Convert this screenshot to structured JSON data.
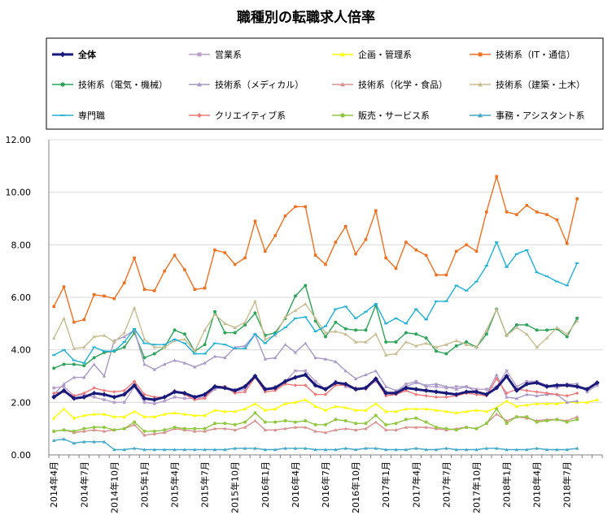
{
  "chart_data": {
    "type": "line",
    "title": "職種別の転職求人倍率",
    "xlabel": "",
    "ylabel": "",
    "ylim": [
      0,
      12
    ],
    "yticks": [
      "0.00",
      "2.00",
      "4.00",
      "6.00",
      "8.00",
      "10.00",
      "12.00"
    ],
    "x_tick_labels": [
      "2014年4月",
      "2014年7月",
      "2014年10月",
      "2015年1月",
      "2015年4月",
      "2015年7月",
      "2015年10月",
      "2016年1月",
      "2016年4月",
      "2016年7月",
      "2016年10月",
      "2017年1月",
      "2017年4月",
      "2017年7月",
      "2017年10月",
      "2018年1月",
      "2018年4月",
      "2018年7月"
    ],
    "grid": true,
    "legend_position": "top",
    "series": [
      {
        "name": "全体",
        "color": "#1a1a7a",
        "marker": "diamond",
        "bold": true,
        "values": [
          2.2,
          2.45,
          2.15,
          2.2,
          2.35,
          2.3,
          2.2,
          2.3,
          2.65,
          2.15,
          2.1,
          2.2,
          2.4,
          2.35,
          2.2,
          2.3,
          2.6,
          2.55,
          2.45,
          2.6,
          3.0,
          2.5,
          2.55,
          2.8,
          2.95,
          3.05,
          2.65,
          2.5,
          2.75,
          2.7,
          2.5,
          2.55,
          2.9,
          2.35,
          2.35,
          2.55,
          2.5,
          2.45,
          2.4,
          2.35,
          2.3,
          2.4,
          2.4,
          2.3,
          2.55,
          3.0,
          2.45,
          2.7,
          2.75,
          2.6,
          2.65,
          2.65,
          2.6,
          2.5,
          2.75
        ]
      },
      {
        "name": "営業系",
        "color": "#b8a0cc",
        "marker": "square",
        "values": [
          2.55,
          2.6,
          2.25,
          2.3,
          2.2,
          2.1,
          2.0,
          2.0,
          2.6,
          2.0,
          1.95,
          2.05,
          2.2,
          2.15,
          2.15,
          2.2,
          2.5,
          2.6,
          2.4,
          2.5,
          3.0,
          2.5,
          2.6,
          2.8,
          3.2,
          3.2,
          2.8,
          2.5,
          2.8,
          2.6,
          2.5,
          2.55,
          2.8,
          2.4,
          2.4,
          2.7,
          2.8,
          2.6,
          2.6,
          2.55,
          2.6,
          2.6,
          2.5,
          2.5,
          2.6,
          3.2,
          2.6,
          2.8,
          2.8,
          2.65,
          2.55,
          2.7,
          2.7,
          2.4,
          2.65
        ]
      },
      {
        "name": "企画・管理系",
        "color": "#ffff00",
        "marker": "triangle",
        "values": [
          1.4,
          1.75,
          1.4,
          1.5,
          1.55,
          1.55,
          1.45,
          1.45,
          1.65,
          1.45,
          1.45,
          1.55,
          1.6,
          1.55,
          1.5,
          1.5,
          1.7,
          1.65,
          1.65,
          1.75,
          1.95,
          1.7,
          1.75,
          1.95,
          2.0,
          2.1,
          1.85,
          1.7,
          1.85,
          1.8,
          1.7,
          1.7,
          1.95,
          1.65,
          1.65,
          1.75,
          1.75,
          1.75,
          1.7,
          1.65,
          1.6,
          1.65,
          1.7,
          1.65,
          1.8,
          2.05,
          1.85,
          1.9,
          1.95,
          1.95,
          1.95,
          2.0,
          2.0,
          2.0,
          2.1
        ]
      },
      {
        "name": "技術系（IT・通信）",
        "color": "#f07020",
        "marker": "square",
        "values": [
          5.65,
          6.4,
          5.05,
          5.15,
          6.1,
          6.05,
          5.95,
          6.55,
          7.5,
          6.3,
          6.25,
          7.0,
          7.6,
          7.05,
          6.3,
          6.35,
          7.8,
          7.7,
          7.25,
          7.5,
          8.9,
          7.75,
          8.35,
          9.1,
          9.45,
          9.45,
          7.6,
          7.25,
          8.1,
          8.7,
          7.65,
          8.2,
          9.3,
          7.5,
          7.1,
          8.1,
          7.8,
          7.6,
          6.85,
          6.85,
          7.75,
          8.0,
          7.75,
          9.25,
          10.6,
          9.25,
          9.15,
          9.5,
          9.25,
          9.15,
          8.95,
          8.05,
          9.75
        ]
      },
      {
        "name": "技術系（電気・機械）",
        "color": "#2ea35a",
        "marker": "circle",
        "values": [
          3.3,
          3.45,
          3.45,
          3.4,
          3.7,
          3.9,
          3.95,
          4.1,
          4.65,
          3.7,
          3.85,
          4.1,
          4.75,
          4.6,
          3.95,
          4.2,
          5.45,
          4.65,
          4.65,
          4.95,
          5.4,
          4.55,
          4.65,
          5.2,
          6.05,
          6.45,
          5.1,
          4.5,
          5.05,
          4.8,
          4.75,
          4.75,
          5.7,
          4.3,
          4.3,
          4.65,
          4.6,
          4.45,
          3.95,
          3.85,
          4.15,
          4.3,
          4.1,
          4.6,
          5.55,
          4.55,
          4.95,
          4.95,
          4.75,
          4.75,
          4.8,
          4.5,
          5.2
        ]
      },
      {
        "name": "技術系（メディカル）",
        "color": "#a898c8",
        "marker": "triangle",
        "values": [
          2.3,
          2.7,
          2.95,
          2.95,
          3.45,
          3.0,
          4.35,
          4.5,
          4.75,
          3.45,
          3.25,
          3.45,
          3.6,
          3.5,
          3.35,
          3.5,
          3.75,
          3.7,
          4.1,
          4.15,
          4.6,
          3.65,
          3.7,
          4.2,
          3.9,
          4.25,
          3.7,
          3.65,
          3.55,
          3.2,
          2.9,
          3.05,
          3.2,
          2.6,
          2.45,
          2.6,
          2.75,
          2.65,
          2.7,
          2.6,
          2.5,
          2.6,
          2.4,
          2.3,
          3.05,
          2.2,
          2.15,
          2.3,
          2.25,
          2.3,
          2.3,
          2.0,
          2.05
        ]
      },
      {
        "name": "技術系（化学・食品）",
        "color": "#d89090",
        "marker": "triangle",
        "values": [
          0.9,
          0.95,
          0.85,
          0.9,
          0.95,
          0.9,
          0.95,
          1.0,
          1.15,
          0.75,
          0.8,
          0.85,
          1.0,
          0.95,
          0.9,
          0.9,
          1.0,
          1.0,
          0.95,
          1.05,
          1.3,
          0.95,
          0.95,
          1.0,
          1.05,
          1.05,
          0.9,
          0.85,
          0.95,
          1.0,
          0.95,
          1.0,
          1.25,
          0.95,
          0.95,
          1.05,
          1.05,
          1.05,
          1.0,
          0.95,
          1.0,
          1.05,
          1.0,
          1.2,
          1.55,
          1.3,
          1.45,
          1.4,
          1.3,
          1.35,
          1.35,
          1.3,
          1.45
        ]
      },
      {
        "name": "技術系（建築・土木）",
        "color": "#c8bc90",
        "marker": "triangle",
        "values": [
          4.45,
          5.2,
          4.05,
          4.1,
          4.5,
          4.55,
          4.3,
          4.65,
          5.6,
          4.4,
          4.1,
          4.1,
          4.35,
          4.4,
          3.95,
          4.75,
          5.35,
          5.0,
          4.85,
          5.05,
          5.85,
          4.4,
          4.55,
          5.25,
          5.5,
          5.75,
          5.2,
          4.65,
          4.7,
          4.6,
          4.3,
          4.3,
          4.6,
          3.8,
          3.85,
          4.3,
          4.15,
          4.25,
          4.1,
          4.2,
          4.35,
          4.2,
          4.1,
          4.75,
          5.55,
          4.55,
          4.85,
          4.6,
          4.1,
          4.45,
          4.85,
          4.6,
          5.1
        ]
      },
      {
        "name": "専門職",
        "color": "#20b0d8",
        "marker": "dash",
        "values": [
          3.8,
          4.0,
          3.6,
          3.5,
          4.1,
          3.95,
          3.95,
          4.3,
          4.8,
          4.25,
          4.2,
          4.2,
          4.4,
          4.25,
          3.85,
          3.85,
          4.25,
          4.2,
          4.05,
          4.05,
          4.6,
          4.25,
          4.6,
          4.85,
          5.2,
          5.25,
          4.7,
          4.9,
          5.55,
          5.65,
          5.2,
          5.45,
          5.75,
          5.0,
          5.2,
          5.0,
          5.55,
          5.15,
          5.85,
          5.85,
          6.45,
          6.25,
          6.6,
          7.2,
          8.1,
          7.15,
          7.65,
          7.8,
          6.95,
          6.8,
          6.6,
          6.45,
          7.3
        ]
      },
      {
        "name": "クリエイティブ系",
        "color": "#f07878",
        "marker": "diamond",
        "values": [
          2.35,
          2.4,
          2.25,
          2.35,
          2.55,
          2.45,
          2.4,
          2.45,
          2.8,
          2.3,
          2.2,
          2.2,
          2.45,
          2.3,
          2.1,
          2.15,
          2.6,
          2.6,
          2.35,
          2.4,
          2.95,
          2.4,
          2.45,
          2.7,
          2.65,
          2.65,
          2.3,
          2.3,
          2.65,
          2.65,
          2.55,
          2.5,
          2.85,
          2.25,
          2.3,
          2.45,
          2.3,
          2.25,
          2.2,
          2.2,
          2.25,
          2.35,
          2.3,
          2.25,
          2.9,
          2.35,
          2.5,
          2.45,
          2.4,
          2.35,
          2.3,
          2.25,
          2.35
        ]
      },
      {
        "name": "販売・サービス系",
        "color": "#90c840",
        "marker": "circle",
        "values": [
          0.9,
          0.95,
          0.9,
          1.0,
          1.05,
          1.05,
          0.95,
          1.0,
          1.25,
          0.9,
          0.9,
          0.95,
          1.05,
          1.0,
          1.0,
          1.0,
          1.2,
          1.2,
          1.15,
          1.25,
          1.6,
          1.25,
          1.25,
          1.3,
          1.25,
          1.3,
          1.15,
          1.15,
          1.35,
          1.3,
          1.2,
          1.2,
          1.5,
          1.15,
          1.2,
          1.35,
          1.4,
          1.25,
          1.05,
          1.0,
          0.95,
          1.05,
          1.0,
          1.2,
          1.75,
          1.2,
          1.45,
          1.45,
          1.25,
          1.3,
          1.35,
          1.25,
          1.35
        ]
      },
      {
        "name": "事務・アシスタント系",
        "color": "#40a8c8",
        "marker": "triangle",
        "values": [
          0.55,
          0.6,
          0.45,
          0.5,
          0.5,
          0.5,
          0.2,
          0.2,
          0.25,
          0.2,
          0.2,
          0.2,
          0.2,
          0.2,
          0.2,
          0.2,
          0.2,
          0.2,
          0.25,
          0.25,
          0.25,
          0.2,
          0.2,
          0.25,
          0.25,
          0.25,
          0.2,
          0.2,
          0.2,
          0.25,
          0.2,
          0.25,
          0.25,
          0.2,
          0.2,
          0.2,
          0.25,
          0.2,
          0.2,
          0.25,
          0.2,
          0.2,
          0.2,
          0.25,
          0.25,
          0.2,
          0.2,
          0.2,
          0.25,
          0.2,
          0.2,
          0.2,
          0.25
        ]
      }
    ]
  }
}
